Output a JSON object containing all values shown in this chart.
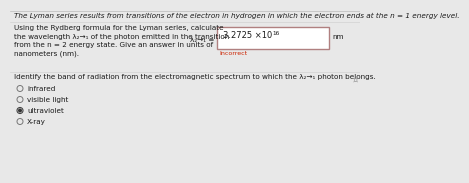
{
  "title_text": "The Lyman series results from transitions of the electron in hydrogen in which the electron ends at the n = 1 energy level.",
  "question1_lines": [
    "Using the Rydberg formula for the Lyman series, calculate",
    "the wavelength λ₂→₁ of the photon emitted in the transition",
    "from the n = 2 energy state. Give an answer in units of",
    "nanometers (nm)."
  ],
  "lambda_label": "λ₂→₁ =",
  "answer_value": "3.2725 ×10",
  "answer_exp": "16",
  "answer_unit": "nm",
  "incorrect_text": "Incorrect",
  "question2_text": "Identify the band of radiation from the electromagnetic spectrum to which the λ₂→₁ photon belongs.",
  "radio_options": [
    "infrared",
    "visible light",
    "ultraviolet",
    "X-ray"
  ],
  "selected_option": 2,
  "bg_color": "#e8e8e8",
  "panel_color": "#f5f5f5",
  "box_border_color": "#b08080",
  "box_fill_color": "#ffffff",
  "incorrect_color": "#cc2200",
  "text_color": "#1a1a1a",
  "title_fontsize": 5.2,
  "body_fontsize": 5.2,
  "small_fontsize": 4.5,
  "radio_fontsize": 5.2
}
